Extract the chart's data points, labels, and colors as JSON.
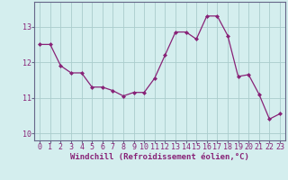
{
  "x": [
    0,
    1,
    2,
    3,
    4,
    5,
    6,
    7,
    8,
    9,
    10,
    11,
    12,
    13,
    14,
    15,
    16,
    17,
    18,
    19,
    20,
    21,
    22,
    23
  ],
  "y": [
    12.5,
    12.5,
    11.9,
    11.7,
    11.7,
    11.3,
    11.3,
    11.2,
    11.05,
    11.15,
    11.15,
    11.55,
    12.2,
    12.85,
    12.85,
    12.65,
    13.3,
    13.3,
    12.75,
    11.6,
    11.65,
    11.1,
    10.4,
    10.55
  ],
  "line_color": "#882277",
  "marker": "D",
  "marker_size": 2.0,
  "bg_color": "#d4eeee",
  "grid_color": "#aacccc",
  "xlabel": "Windchill (Refroidissement éolien,°C)",
  "xlabel_fontsize": 6.5,
  "tick_fontsize": 6,
  "ylim": [
    9.8,
    13.7
  ],
  "yticks": [
    10,
    11,
    12,
    13
  ],
  "xticks": [
    0,
    1,
    2,
    3,
    4,
    5,
    6,
    7,
    8,
    9,
    10,
    11,
    12,
    13,
    14,
    15,
    16,
    17,
    18,
    19,
    20,
    21,
    22,
    23
  ]
}
